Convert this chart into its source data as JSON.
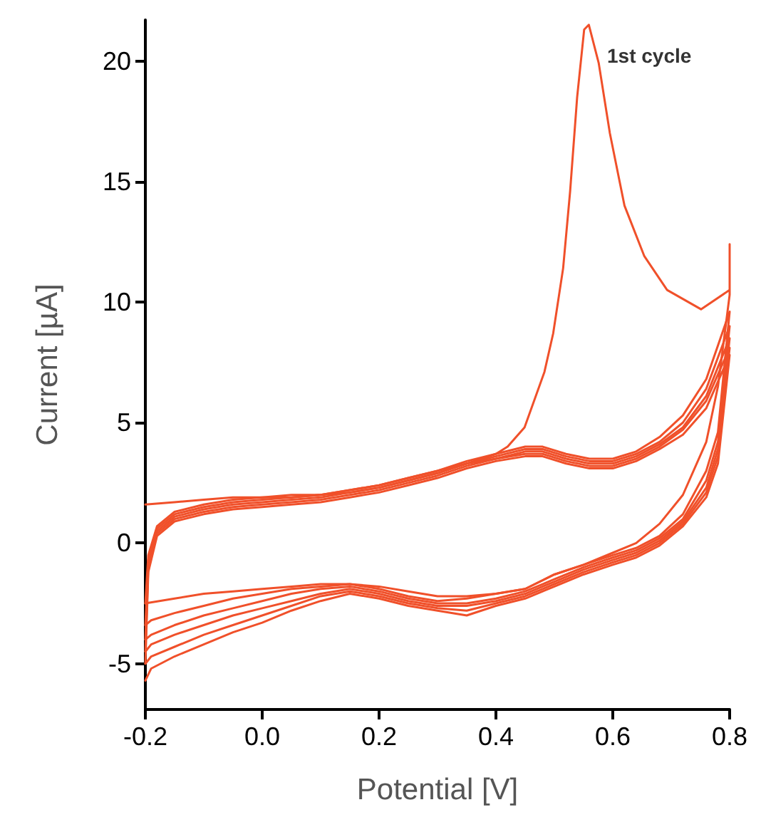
{
  "chart_data": {
    "type": "line",
    "xlabel": "Potential [V]",
    "ylabel": "Current [µA]",
    "xlim": [
      -0.2,
      0.8
    ],
    "xticks": [
      -0.2,
      {
        "value": 0,
        "label": "0.0"
      },
      0.2,
      0.4,
      0.6,
      0.8
    ],
    "ylim": [
      -6.9,
      21.7
    ],
    "yticks": [
      -5,
      0,
      5,
      10,
      15,
      20
    ],
    "grid": false,
    "marker": "none",
    "line_style": "solid",
    "annotations": [
      "1st cycle"
    ],
    "series": [
      {
        "color": "#f0502a",
        "x": [
          -0.2,
          -0.15,
          -0.1,
          -0.05,
          0,
          0.05,
          0.1,
          0.15,
          0.2,
          0.25,
          0.3,
          0.35,
          0.4,
          0.42,
          0.449,
          0.483,
          0.498,
          0.515,
          0.527,
          0.539,
          0.551,
          0.559,
          0.576,
          0.595,
          0.62,
          0.654,
          0.693,
          0.751,
          0.8,
          0.8,
          0.8,
          0.78,
          0.76,
          0.72,
          0.68,
          0.64,
          0.6,
          0.55,
          0.5,
          0.45,
          0.4,
          0.35,
          0.3,
          0.25,
          0.2,
          0.15,
          0.1,
          0.05,
          0,
          -0.05,
          -0.1,
          -0.15,
          -0.2
        ],
        "values": [
          1.6,
          1.7,
          1.8,
          1.9,
          1.9,
          2.0,
          2.0,
          2.1,
          2.3,
          2.6,
          2.9,
          3.3,
          3.7,
          4.0,
          4.8,
          7.1,
          8.7,
          11.4,
          14.6,
          18.5,
          21.3,
          21.5,
          19.9,
          17.0,
          14.0,
          11.9,
          10.5,
          9.7,
          10.5,
          12.4,
          10.3,
          6.5,
          4.2,
          2.0,
          0.8,
          0.0,
          -0.4,
          -0.9,
          -1.3,
          -1.9,
          -2.1,
          -2.2,
          -2.2,
          -2.0,
          -1.8,
          -1.7,
          -1.7,
          -1.8,
          -1.9,
          -2.0,
          -2.1,
          -2.3,
          -2.5
        ]
      },
      {
        "color": "#f0502a",
        "x": [
          -0.2,
          -0.195,
          -0.18,
          -0.15,
          -0.1,
          -0.05,
          0,
          0.05,
          0.1,
          0.15,
          0.2,
          0.25,
          0.3,
          0.35,
          0.4,
          0.45,
          0.48,
          0.52,
          0.56,
          0.6,
          0.64,
          0.68,
          0.72,
          0.76,
          0.78,
          0.8,
          0.78,
          0.76,
          0.72,
          0.68,
          0.64,
          0.6,
          0.55,
          0.5,
          0.45,
          0.4,
          0.35,
          0.3,
          0.25,
          0.2,
          0.15,
          0.1,
          0.05,
          0,
          -0.05,
          -0.1,
          -0.15,
          -0.19,
          -0.2
        ],
        "values": [
          -2.5,
          -0.5,
          0.7,
          1.3,
          1.6,
          1.8,
          1.9,
          1.9,
          2.0,
          2.2,
          2.4,
          2.7,
          3.0,
          3.4,
          3.7,
          4.0,
          4.0,
          3.7,
          3.5,
          3.5,
          3.8,
          4.4,
          5.3,
          6.8,
          8.2,
          9.6,
          4.6,
          3.0,
          1.2,
          0.3,
          -0.2,
          -0.5,
          -0.9,
          -1.3,
          -1.9,
          -2.1,
          -2.3,
          -2.4,
          -2.2,
          -1.9,
          -1.7,
          -1.8,
          -1.9,
          -2.1,
          -2.3,
          -2.6,
          -2.9,
          -3.2,
          -3.4
        ]
      },
      {
        "color": "#f0502a",
        "x": [
          -0.2,
          -0.195,
          -0.18,
          -0.15,
          -0.1,
          -0.05,
          0,
          0.05,
          0.1,
          0.15,
          0.2,
          0.25,
          0.3,
          0.35,
          0.4,
          0.45,
          0.48,
          0.52,
          0.56,
          0.6,
          0.64,
          0.68,
          0.72,
          0.76,
          0.78,
          0.8,
          0.78,
          0.76,
          0.72,
          0.68,
          0.64,
          0.6,
          0.55,
          0.5,
          0.45,
          0.4,
          0.35,
          0.3,
          0.25,
          0.2,
          0.15,
          0.1,
          0.05,
          0,
          -0.05,
          -0.1,
          -0.15,
          -0.19,
          -0.2
        ],
        "values": [
          -3.4,
          -0.7,
          0.6,
          1.2,
          1.5,
          1.7,
          1.8,
          1.9,
          2.0,
          2.2,
          2.4,
          2.7,
          3.0,
          3.3,
          3.6,
          3.9,
          3.9,
          3.6,
          3.4,
          3.4,
          3.7,
          4.2,
          5.0,
          6.4,
          7.7,
          9.0,
          4.2,
          2.6,
          1.0,
          0.2,
          -0.3,
          -0.6,
          -1.0,
          -1.5,
          -2.0,
          -2.3,
          -2.5,
          -2.5,
          -2.3,
          -2.0,
          -1.8,
          -1.9,
          -2.1,
          -2.4,
          -2.7,
          -3.0,
          -3.4,
          -3.8,
          -4.0
        ]
      },
      {
        "color": "#f0502a",
        "x": [
          -0.2,
          -0.195,
          -0.18,
          -0.15,
          -0.1,
          -0.05,
          0,
          0.05,
          0.1,
          0.15,
          0.2,
          0.25,
          0.3,
          0.35,
          0.4,
          0.45,
          0.48,
          0.52,
          0.56,
          0.6,
          0.64,
          0.68,
          0.72,
          0.76,
          0.78,
          0.8,
          0.78,
          0.76,
          0.72,
          0.68,
          0.64,
          0.6,
          0.55,
          0.5,
          0.45,
          0.4,
          0.35,
          0.3,
          0.25,
          0.2,
          0.15,
          0.1,
          0.05,
          0,
          -0.05,
          -0.1,
          -0.15,
          -0.19,
          -0.2
        ],
        "values": [
          -4.0,
          -0.9,
          0.5,
          1.1,
          1.4,
          1.6,
          1.7,
          1.8,
          1.9,
          2.1,
          2.3,
          2.6,
          2.9,
          3.3,
          3.5,
          3.8,
          3.8,
          3.5,
          3.3,
          3.3,
          3.6,
          4.1,
          4.8,
          6.1,
          7.3,
          8.5,
          3.9,
          2.3,
          0.9,
          0.1,
          -0.4,
          -0.7,
          -1.1,
          -1.6,
          -2.1,
          -2.4,
          -2.6,
          -2.6,
          -2.4,
          -2.1,
          -1.9,
          -2.1,
          -2.4,
          -2.7,
          -3.0,
          -3.4,
          -3.8,
          -4.2,
          -4.5
        ]
      },
      {
        "color": "#f0502a",
        "x": [
          -0.2,
          -0.195,
          -0.18,
          -0.15,
          -0.1,
          -0.05,
          0,
          0.05,
          0.1,
          0.15,
          0.2,
          0.25,
          0.3,
          0.35,
          0.4,
          0.45,
          0.48,
          0.52,
          0.56,
          0.6,
          0.64,
          0.68,
          0.72,
          0.76,
          0.78,
          0.8,
          0.78,
          0.76,
          0.72,
          0.68,
          0.64,
          0.6,
          0.55,
          0.5,
          0.45,
          0.4,
          0.35,
          0.3,
          0.25,
          0.2,
          0.15,
          0.1,
          0.05,
          0,
          -0.05,
          -0.1,
          -0.15,
          -0.19,
          -0.2
        ],
        "values": [
          -4.5,
          -1.0,
          0.4,
          1.0,
          1.3,
          1.5,
          1.6,
          1.7,
          1.8,
          2.0,
          2.2,
          2.5,
          2.8,
          3.2,
          3.5,
          3.7,
          3.7,
          3.4,
          3.2,
          3.2,
          3.5,
          4.0,
          4.7,
          5.9,
          7.0,
          8.1,
          3.6,
          2.1,
          0.8,
          0.0,
          -0.5,
          -0.8,
          -1.2,
          -1.7,
          -2.2,
          -2.5,
          -2.8,
          -2.7,
          -2.5,
          -2.2,
          -2.0,
          -2.2,
          -2.6,
          -3.0,
          -3.4,
          -3.8,
          -4.3,
          -4.7,
          -5.0
        ]
      },
      {
        "color": "#f0502a",
        "x": [
          -0.2,
          -0.195,
          -0.18,
          -0.15,
          -0.1,
          -0.05,
          0,
          0.05,
          0.1,
          0.15,
          0.2,
          0.25,
          0.3,
          0.35,
          0.4,
          0.45,
          0.48,
          0.52,
          0.56,
          0.6,
          0.64,
          0.68,
          0.72,
          0.76,
          0.78,
          0.8,
          0.78,
          0.76,
          0.72,
          0.68,
          0.64,
          0.6,
          0.55,
          0.5,
          0.45,
          0.4,
          0.35,
          0.3,
          0.25,
          0.2,
          0.15,
          0.1,
          0.05,
          0,
          -0.05,
          -0.1,
          -0.15,
          -0.19,
          -0.2
        ],
        "values": [
          -5.0,
          -1.2,
          0.3,
          0.9,
          1.2,
          1.4,
          1.5,
          1.6,
          1.7,
          1.9,
          2.1,
          2.4,
          2.7,
          3.1,
          3.4,
          3.6,
          3.6,
          3.3,
          3.1,
          3.1,
          3.4,
          3.9,
          4.5,
          5.6,
          6.7,
          7.8,
          3.3,
          1.9,
          0.7,
          -0.1,
          -0.6,
          -0.9,
          -1.3,
          -1.8,
          -2.3,
          -2.6,
          -3.0,
          -2.8,
          -2.6,
          -2.3,
          -2.1,
          -2.4,
          -2.8,
          -3.3,
          -3.7,
          -4.2,
          -4.7,
          -5.2,
          -5.7
        ]
      }
    ]
  }
}
